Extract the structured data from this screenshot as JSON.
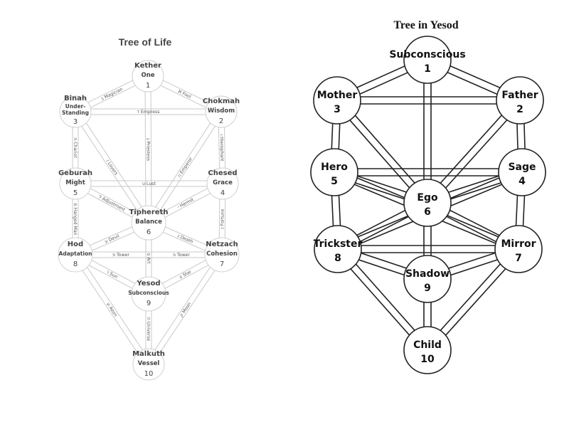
{
  "left_diagram": {
    "title": "Tree of Life",
    "sephiroth": [
      {
        "name": "Kether",
        "sub": "One",
        "num": "1"
      },
      {
        "name": "Chokmah",
        "sub": "Wisdom",
        "num": "2"
      },
      {
        "name": "Binah",
        "sub": "Under-",
        "sub2": "Standing",
        "num": "3"
      },
      {
        "name": "Chesed",
        "sub": "Grace",
        "num": "4"
      },
      {
        "name": "Geburah",
        "sub": "Might",
        "num": "5"
      },
      {
        "name": "Tiphereth",
        "sub": "Balance",
        "num": "6"
      },
      {
        "name": "Netzach",
        "sub": "Cohesion",
        "num": "7"
      },
      {
        "name": "Hod",
        "sub": "Adaptation",
        "num": "8"
      },
      {
        "name": "Yesod",
        "sub": "Subconscious",
        "num": "9"
      },
      {
        "name": "Malkuth",
        "sub": "Vessel",
        "num": "10"
      }
    ],
    "paths": [
      "ℵ Fool",
      "ב Magician",
      "ג Priestess",
      "ד Empress",
      "ה Emperor",
      "ו Hierophant",
      "ז Lovers",
      "ח Chariot",
      "ט Lust",
      "י Hermit",
      "כ Fortune",
      "ל Adjustment",
      "מ Hanged Man",
      "נ Death",
      "ס Art",
      "ע Devil",
      "פ Tower",
      "פ Tower",
      "צ Star",
      "ק Moon",
      "ר Sun",
      "ש Aeon",
      "ת Universe"
    ]
  },
  "right_diagram": {
    "title": "Tree in Yesod",
    "nodes": [
      {
        "name": "Subconscious",
        "num": "1"
      },
      {
        "name": "Father",
        "num": "2"
      },
      {
        "name": "Mother",
        "num": "3"
      },
      {
        "name": "Sage",
        "num": "4"
      },
      {
        "name": "Hero",
        "num": "5"
      },
      {
        "name": "Ego",
        "num": "6"
      },
      {
        "name": "Mirror",
        "num": "7"
      },
      {
        "name": "Trickster",
        "num": "8"
      },
      {
        "name": "Shadow",
        "num": "9"
      },
      {
        "name": "Child",
        "num": "10"
      }
    ]
  }
}
